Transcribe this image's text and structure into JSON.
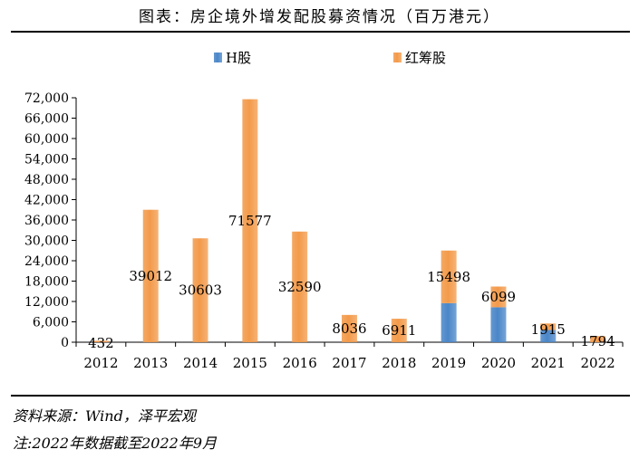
{
  "header": {
    "title": "图表：房企境外增发配股募资情况（百万港元）"
  },
  "footer": {
    "source": "资料来源：Wind，泽平宏观",
    "note": "注:2022年数据截至2022年9月"
  },
  "colors": {
    "h_share": "#4a86c8",
    "red_chip": "#f39a4a"
  },
  "chart_data": {
    "type": "bar",
    "stacked": true,
    "title": "房企境外增发配股募资情况（百万港元）",
    "categories": [
      "2012",
      "2013",
      "2014",
      "2015",
      "2016",
      "2017",
      "2018",
      "2019",
      "2020",
      "2021",
      "2022"
    ],
    "series": [
      {
        "name": "H股",
        "color": "#4a86c8",
        "values": [
          0,
          0,
          0,
          0,
          0,
          0,
          0,
          11500,
          10300,
          3600,
          0
        ]
      },
      {
        "name": "红筹股",
        "color": "#f39a4a",
        "values": [
          432,
          39012,
          30603,
          71577,
          32590,
          8036,
          6911,
          15498,
          6099,
          1915,
          1794
        ]
      }
    ],
    "data_labels": [
      "432",
      "39012",
      "30603",
      "71577",
      "32590",
      "8036",
      "6911",
      "15498",
      "6099",
      "1915",
      "1794"
    ],
    "yticks": [
      "0",
      "6,000",
      "12,000",
      "18,000",
      "24,000",
      "30,000",
      "36,000",
      "42,000",
      "48,000",
      "54,000",
      "60,000",
      "66,000",
      "72,000"
    ],
    "ylim": [
      0,
      72000
    ],
    "legend_position": "top",
    "grid": false
  }
}
